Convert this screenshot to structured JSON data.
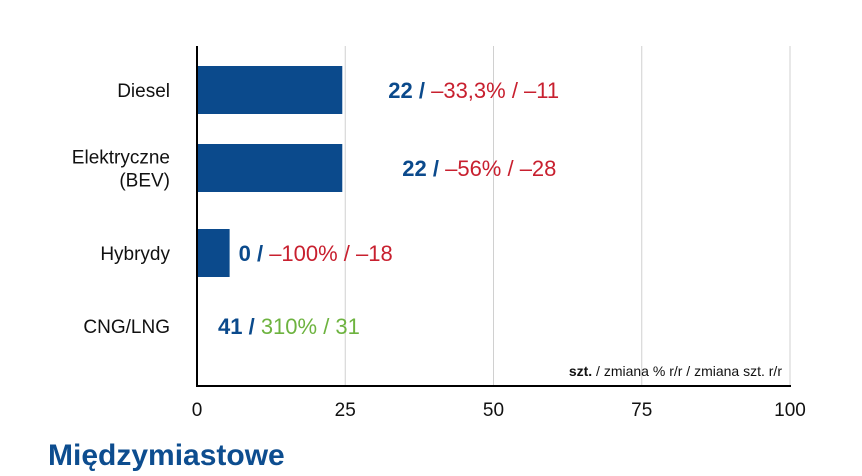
{
  "chart_data": {
    "type": "bar",
    "orientation": "horizontal",
    "categories": [
      "Diesel",
      "Elektryczne (BEV)",
      "Hybrydy",
      "CNG/LNG"
    ],
    "category_lines": [
      [
        "Diesel"
      ],
      [
        "Elektryczne",
        "(BEV)"
      ],
      [
        "Hybrydy"
      ],
      [
        "CNG/LNG"
      ]
    ],
    "values": [
      22,
      22,
      0,
      41
    ],
    "bar_values": [
      24.5,
      24.5,
      5.5,
      0
    ],
    "pct_change": [
      "–33,3%",
      "–56%",
      "–100%",
      "310%"
    ],
    "unit_change": [
      "–11",
      "–28",
      "–18",
      "31"
    ],
    "change_colors": [
      "#c8202f",
      "#c8202f",
      "#c8202f",
      "#6db33f"
    ],
    "xlim": [
      0,
      100
    ],
    "xticks": [
      "0",
      "25",
      "50",
      "75",
      "100"
    ],
    "grid": "vertical",
    "note_bold": "szt.",
    "note_rest": " / zmiana % r/r / zmiana szt. r/r",
    "colors": {
      "bar": "#0b4a8c",
      "value": "#0b4a8c",
      "grid": "#d0d0d0",
      "axis": "#000000"
    }
  },
  "next_heading": "Międzymiastowe"
}
